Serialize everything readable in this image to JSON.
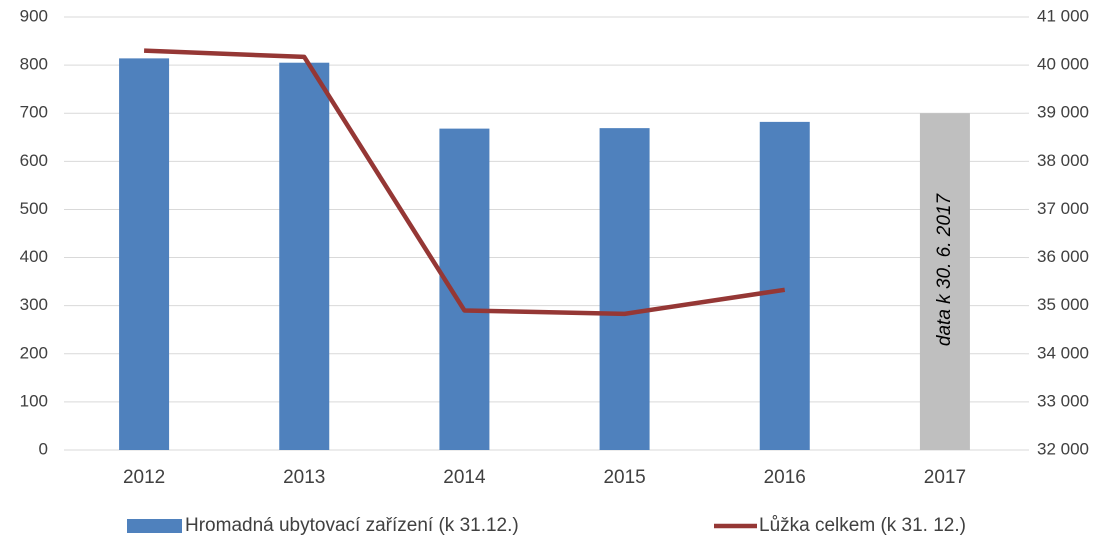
{
  "chart_data": {
    "type": "bar",
    "categories": [
      "2012",
      "2013",
      "2014",
      "2015",
      "2016",
      "2017"
    ],
    "series": [
      {
        "name": "Hromadná ubytovací zařízení (k 31.12.)",
        "type": "bar",
        "color": "#4f81bd",
        "colors": [
          "#4f81bd",
          "#4f81bd",
          "#4f81bd",
          "#4f81bd",
          "#4f81bd",
          "#bfbfbf"
        ],
        "values": [
          814,
          805,
          668,
          669,
          682,
          700
        ]
      },
      {
        "name": "Lůžka celkem (k 31. 12.)",
        "type": "line",
        "axis": "y2",
        "color": "#953735",
        "values": [
          40300,
          40170,
          34900,
          34830,
          35330,
          null
        ]
      }
    ],
    "annotation": "data k 30. 6. 2017",
    "ylim": [
      0,
      900
    ],
    "yticks": [
      0,
      100,
      200,
      300,
      400,
      500,
      600,
      700,
      800,
      900
    ],
    "y2lim": [
      32000,
      41000
    ],
    "y2ticks": [
      {
        "value": 32000,
        "label": "32 000"
      },
      {
        "value": 33000,
        "label": "33 000"
      },
      {
        "value": 34000,
        "label": "34 000"
      },
      {
        "value": 35000,
        "label": "35 000"
      },
      {
        "value": 36000,
        "label": "36 000"
      },
      {
        "value": 37000,
        "label": "37 000"
      },
      {
        "value": 38000,
        "label": "38 000"
      },
      {
        "value": 39000,
        "label": "39 000"
      },
      {
        "value": 40000,
        "label": "40 000"
      },
      {
        "value": 41000,
        "label": "41 000"
      }
    ],
    "grid": true,
    "legend": "bottom"
  }
}
